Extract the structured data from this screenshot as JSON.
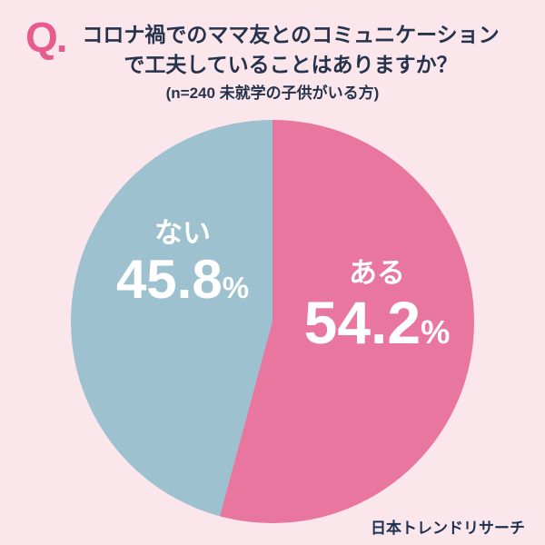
{
  "header": {
    "q_label": "Q.",
    "title_line1": "コロナ禍でのママ友とのコミュニケーション",
    "title_line2": "で工夫していることはありますか？",
    "subtitle": "(n=240 未就学の子供がいる方)"
  },
  "chart_data": {
    "type": "pie",
    "labels": [
      "ある",
      "ない"
    ],
    "values": [
      54.2,
      45.8
    ],
    "colors": [
      "#e8769e",
      "#9dc1ce"
    ],
    "unit": "%",
    "n": 240,
    "start_angle_deg": 0,
    "direction": "clockwise",
    "legend_position": "none",
    "background_color": "#fbe7eb"
  },
  "footer": {
    "source": "日本トレンドリサーチ"
  }
}
